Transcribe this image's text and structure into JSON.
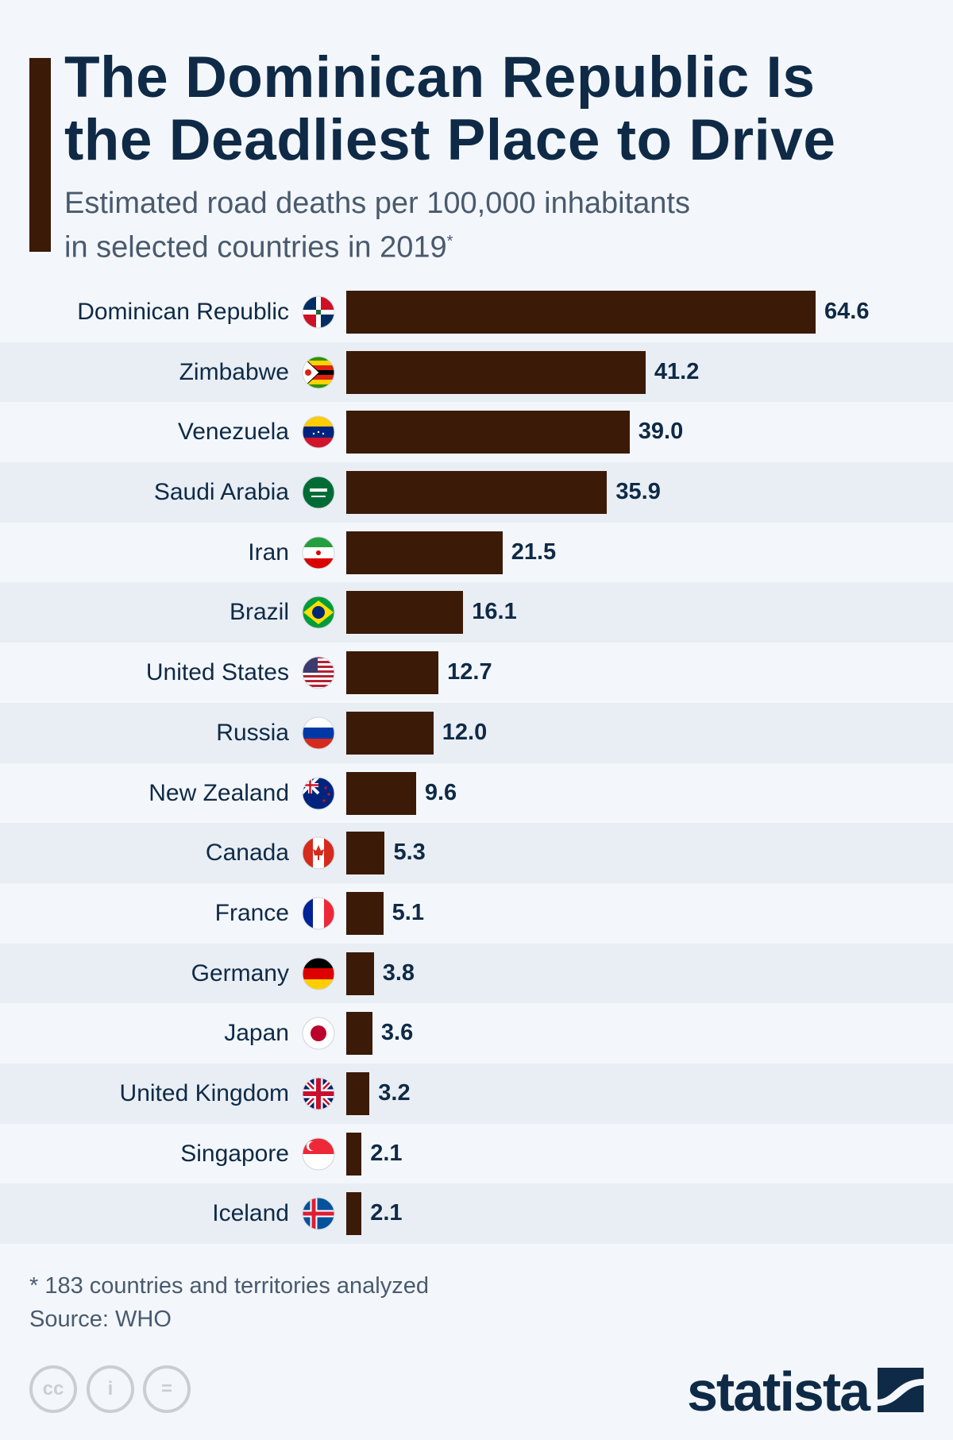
{
  "title": [
    "The Dominican Republic Is",
    "the Deadliest Place to Drive"
  ],
  "subtitle": [
    "Estimated road deaths per 100,000 inhabitants",
    "in selected countries in 2019"
  ],
  "subtitle_mark": "*",
  "chart_data": {
    "type": "bar",
    "orientation": "horizontal",
    "categories": [
      "Dominican Republic",
      "Zimbabwe",
      "Venezuela",
      "Saudi Arabia",
      "Iran",
      "Brazil",
      "United States",
      "Russia",
      "New Zealand",
      "Canada",
      "France",
      "Germany",
      "Japan",
      "United Kingdom",
      "Singapore",
      "Iceland"
    ],
    "values": [
      64.6,
      41.2,
      39.0,
      35.9,
      21.5,
      16.1,
      12.7,
      12.0,
      9.6,
      5.3,
      5.1,
      3.8,
      3.6,
      3.2,
      2.1,
      2.1
    ],
    "value_labels": [
      "64.6",
      "41.2",
      "39.0",
      "35.9",
      "21.5",
      "16.1",
      "12.7",
      "12.0",
      "9.6",
      "5.3",
      "5.1",
      "3.8",
      "3.6",
      "3.2",
      "2.1",
      "2.1"
    ],
    "flags": [
      "flag-dominican-republic",
      "flag-zimbabwe",
      "flag-venezuela",
      "flag-saudi-arabia",
      "flag-iran",
      "flag-brazil",
      "flag-united-states",
      "flag-russia",
      "flag-new-zealand",
      "flag-canada",
      "flag-france",
      "flag-germany",
      "flag-japan",
      "flag-united-kingdom",
      "flag-singapore",
      "flag-iceland"
    ],
    "xlim": [
      0,
      64.6
    ],
    "grid": false,
    "bar_color": "#3b1a08"
  },
  "footnote": "* 183 countries and territories analyzed",
  "source": "Source: WHO",
  "license_icons": [
    "cc-icon",
    "attribution-icon",
    "no-derivatives-icon"
  ],
  "license_glyphs": [
    "cc",
    "i",
    "="
  ],
  "brand": "statista",
  "colors": {
    "title": "#0f2a46",
    "accent": "#3b1a08",
    "background": "#f3f7fb",
    "stripe": "#e8eef4"
  }
}
